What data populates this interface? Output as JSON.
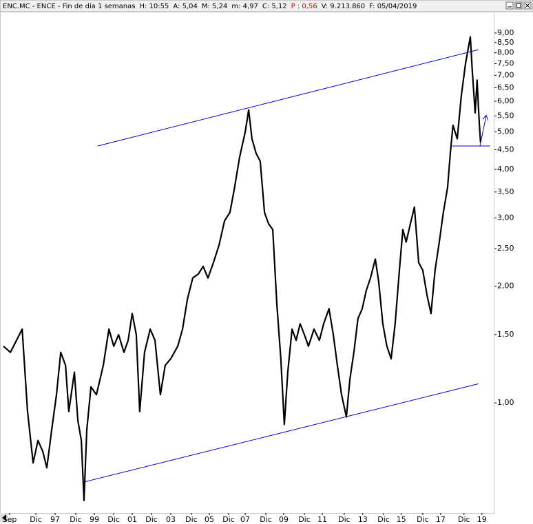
{
  "chart_data": {
    "type": "line",
    "header": [
      {
        "text": "ENC.MC - ENCE - Fin de día 1 semanas",
        "color": "#000000"
      },
      {
        "text": "H: 10:55",
        "color": "#000000"
      },
      {
        "text": "A: 5,04",
        "color": "#000000"
      },
      {
        "text": "M: 5,24",
        "color": "#000000"
      },
      {
        "text": "m: 4,97",
        "color": "#000000"
      },
      {
        "text": "C: 5,12",
        "color": "#000000"
      },
      {
        "text": "P : 0,56",
        "color": "#e00000"
      },
      {
        "text": "V: 9.213.860",
        "color": "#000000"
      },
      {
        "text": "F: 05/04/2019",
        "color": "#000000"
      }
    ],
    "log_scale": true,
    "xlim": [
      1994.14,
      2019.79
    ],
    "ylim": [
      0.52,
      10.17
    ],
    "xticks": [
      {
        "value": 1994.64,
        "label": "Sep"
      },
      {
        "value": 1996.0,
        "label": "Dic"
      },
      {
        "value": 1997.0,
        "label": "97"
      },
      {
        "value": 1998.07,
        "label": "Dic"
      },
      {
        "value": 1999.04,
        "label": "99"
      },
      {
        "value": 2000.04,
        "label": "Dic"
      },
      {
        "value": 2001.0,
        "label": "01"
      },
      {
        "value": 2002.0,
        "label": "Dic"
      },
      {
        "value": 2003.0,
        "label": "03"
      },
      {
        "value": 2004.07,
        "label": "Dic"
      },
      {
        "value": 2005.0,
        "label": "05"
      },
      {
        "value": 2006.0,
        "label": "Dic"
      },
      {
        "value": 2006.86,
        "label": "07"
      },
      {
        "value": 2007.93,
        "label": "Dic"
      },
      {
        "value": 2008.86,
        "label": "09"
      },
      {
        "value": 2009.93,
        "label": "Dic"
      },
      {
        "value": 2010.86,
        "label": "11"
      },
      {
        "value": 2012.0,
        "label": "Dic"
      },
      {
        "value": 2012.96,
        "label": "13"
      },
      {
        "value": 2014.04,
        "label": "Dic"
      },
      {
        "value": 2014.96,
        "label": "15"
      },
      {
        "value": 2016.07,
        "label": "Dic"
      },
      {
        "value": 2017.0,
        "label": "17"
      },
      {
        "value": 2018.21,
        "label": "Dic"
      },
      {
        "value": 2019.14,
        "label": "19"
      }
    ],
    "yticks": [
      {
        "value": 9.0,
        "label": "9,00"
      },
      {
        "value": 8.5,
        "label": "8,50"
      },
      {
        "value": 8.0,
        "label": "8,00"
      },
      {
        "value": 7.5,
        "label": "7,50"
      },
      {
        "value": 7.0,
        "label": "7,00"
      },
      {
        "value": 6.5,
        "label": "6,50"
      },
      {
        "value": 6.0,
        "label": "6,00"
      },
      {
        "value": 5.5,
        "label": "5,50"
      },
      {
        "value": 5.0,
        "label": "5,00"
      },
      {
        "value": 4.5,
        "label": "4,50"
      },
      {
        "value": 4.0,
        "label": "4,00"
      },
      {
        "value": 3.5,
        "label": "3,50"
      },
      {
        "value": 3.0,
        "label": "3,00"
      },
      {
        "value": 2.5,
        "label": "2,50"
      },
      {
        "value": 2.0,
        "label": "2,00"
      },
      {
        "value": 1.5,
        "label": "1,50"
      },
      {
        "value": 1.0,
        "label": "1,00"
      }
    ],
    "x": [
      1994.32,
      1994.68,
      1995.29,
      1995.57,
      1995.86,
      1996.11,
      1996.36,
      1996.57,
      1996.82,
      1997.07,
      1997.29,
      1997.54,
      1997.71,
      1998.0,
      1998.18,
      1998.36,
      1998.5,
      1998.64,
      1998.86,
      1999.14,
      1999.5,
      1999.79,
      2000.04,
      2000.29,
      2000.57,
      2000.79,
      2001.0,
      2001.21,
      2001.39,
      2001.64,
      2001.93,
      2002.18,
      2002.46,
      2002.71,
      2003.0,
      2003.36,
      2003.61,
      2003.86,
      2004.14,
      2004.43,
      2004.68,
      2004.93,
      2005.21,
      2005.5,
      2005.79,
      2006.07,
      2006.29,
      2006.57,
      2006.86,
      2007.04,
      2007.21,
      2007.43,
      2007.64,
      2007.86,
      2008.07,
      2008.29,
      2008.5,
      2008.71,
      2008.89,
      2009.07,
      2009.29,
      2009.5,
      2009.71,
      2009.93,
      2010.14,
      2010.43,
      2010.71,
      2010.93,
      2011.21,
      2011.43,
      2011.64,
      2011.86,
      2012.11,
      2012.29,
      2012.5,
      2012.71,
      2012.93,
      2013.14,
      2013.36,
      2013.61,
      2013.79,
      2014.0,
      2014.21,
      2014.43,
      2014.64,
      2014.86,
      2015.04,
      2015.21,
      2015.43,
      2015.64,
      2015.86,
      2016.07,
      2016.29,
      2016.5,
      2016.71,
      2016.93,
      2017.14,
      2017.36,
      2017.5,
      2017.64,
      2017.86,
      2018.07,
      2018.29,
      2018.43,
      2018.54,
      2018.64,
      2018.79,
      2018.89,
      2019.0,
      2019.07
    ],
    "series": [
      {
        "color": "#000000",
        "values": [
          1.4,
          1.35,
          1.55,
          0.95,
          0.7,
          0.8,
          0.75,
          0.68,
          0.85,
          1.05,
          1.35,
          1.25,
          0.95,
          1.2,
          0.9,
          0.8,
          0.56,
          0.85,
          1.1,
          1.05,
          1.25,
          1.55,
          1.4,
          1.5,
          1.35,
          1.45,
          1.7,
          1.5,
          0.95,
          1.35,
          1.55,
          1.45,
          1.05,
          1.25,
          1.3,
          1.4,
          1.55,
          1.85,
          2.1,
          2.15,
          2.25,
          2.1,
          2.3,
          2.55,
          2.95,
          3.1,
          3.55,
          4.3,
          5.0,
          5.7,
          4.8,
          4.4,
          4.2,
          3.1,
          2.9,
          2.8,
          1.8,
          1.3,
          0.88,
          1.2,
          1.55,
          1.45,
          1.6,
          1.5,
          1.4,
          1.55,
          1.45,
          1.6,
          1.75,
          1.5,
          1.25,
          1.05,
          0.92,
          1.15,
          1.35,
          1.65,
          1.75,
          1.95,
          2.1,
          2.35,
          2.05,
          1.6,
          1.4,
          1.3,
          1.6,
          2.2,
          2.8,
          2.6,
          2.9,
          3.2,
          2.3,
          2.2,
          1.9,
          1.7,
          2.2,
          2.6,
          3.1,
          3.6,
          4.4,
          5.2,
          4.8,
          6.2,
          7.5,
          8.2,
          8.8,
          7.2,
          5.6,
          6.8,
          5.3,
          4.7
        ]
      }
    ],
    "trendlines": [
      {
        "color": "#0000c8",
        "x": [
          1999.21,
          2018.96
        ],
        "y": [
          4.6,
          8.15
        ]
      },
      {
        "color": "#0000c8",
        "x": [
          1998.5,
          2018.96
        ],
        "y": [
          0.625,
          1.12
        ]
      },
      {
        "color": "#0000c8",
        "x": [
          2017.61,
          2019.57
        ],
        "y": [
          4.6,
          4.6
        ]
      }
    ],
    "arrow": {
      "color": "#0000c8",
      "x": [
        2019.04,
        2019.36
      ],
      "y": [
        4.6,
        5.5
      ]
    }
  }
}
